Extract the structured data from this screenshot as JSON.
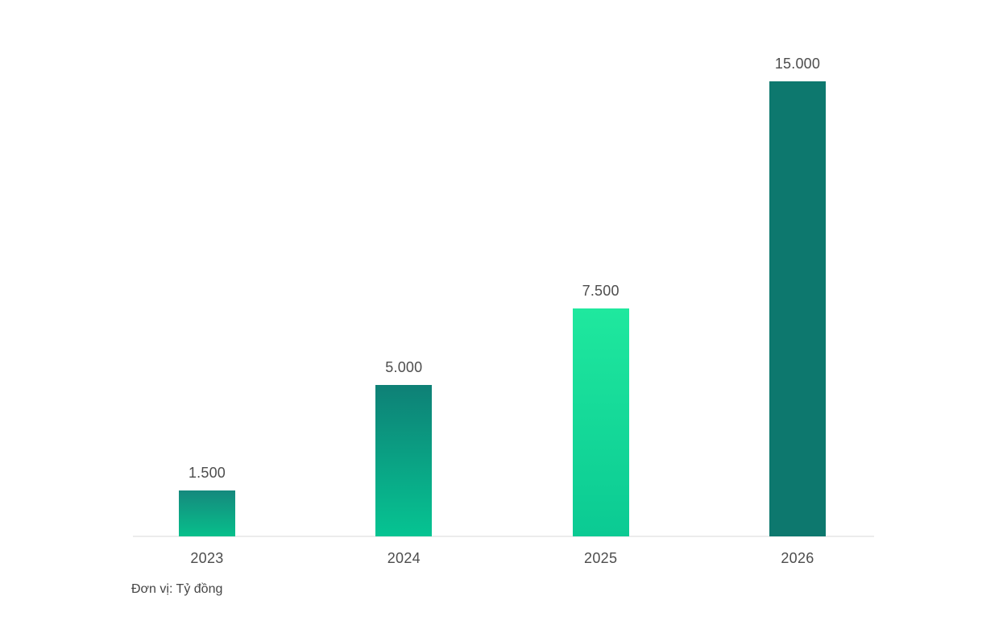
{
  "chart_data": {
    "type": "bar",
    "title": "",
    "xlabel": "",
    "ylabel": "",
    "categories": [
      "2023",
      "2024",
      "2025",
      "2026"
    ],
    "values": [
      1500,
      5000,
      7500,
      15000
    ],
    "value_labels": [
      "1.500",
      "5.000",
      "7.500",
      "15.000"
    ],
    "unit_note": "Đơn vị: Tỷ đồng",
    "ylim": [
      0,
      15000
    ],
    "grid": false,
    "legend": "none",
    "background_color": "#ffffff",
    "axis_color": "#ececec",
    "label_color": "#4d4d4d",
    "bar_colors": [
      {
        "top": "#15897d",
        "bottom": "#07bf8b"
      },
      {
        "top": "#0e8076",
        "bottom": "#06c492"
      },
      {
        "top": "#1fe89e",
        "bottom": "#0bca93"
      },
      {
        "top": "#0d786e",
        "bottom": "#0d786e"
      }
    ]
  }
}
